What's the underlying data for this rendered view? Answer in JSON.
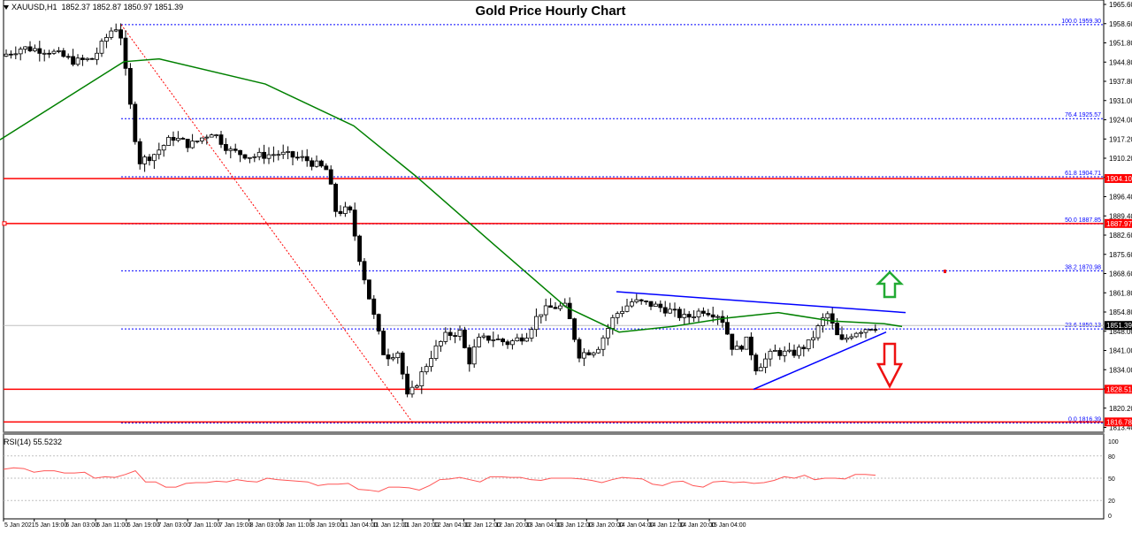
{
  "header": {
    "symbol": "XAUUSD,H1",
    "ohlc": "1852.37 1852.87 1850.97 1851.39",
    "title": "Gold Price Hourly Chart"
  },
  "rsi": {
    "label": "RSI(14) 55.5232",
    "levels": [
      100,
      80,
      50,
      20,
      0
    ]
  },
  "colors": {
    "bull_candle": "#ffffff",
    "bear_candle": "#000000",
    "ma": "#008000",
    "fib": "#0000ff",
    "support_resistance": "#ff0000",
    "rsi_line": "#ff5555",
    "trendline": "#0000ff",
    "up_arrow": "#22aa33",
    "down_arrow": "#ee1111",
    "current_price_bg": "#000000"
  },
  "chart_data": {
    "type": "candlestick",
    "title": "Gold Price Hourly Chart",
    "symbol": "XAUUSD",
    "timeframe": "H1",
    "ylim": [
      1813.4,
      1965.6
    ],
    "y_ticks": [
      "1965.60",
      "1958.60",
      "1951.80",
      "1944.80",
      "1937.80",
      "1931.00",
      "1924.00",
      "1917.20",
      "1910.20",
      "1903.20",
      "1896.40",
      "1889.40",
      "1882.60",
      "1875.60",
      "1868.60",
      "1861.80",
      "1854.80",
      "1848.00",
      "1841.00",
      "1834.00",
      "1827.20",
      "1820.20",
      "1813.40"
    ],
    "x_ticks": [
      "5 Jan 2021",
      "5 Jan 19:00",
      "6 Jan 03:00",
      "6 Jan 11:00",
      "6 Jan 19:00",
      "7 Jan 03:00",
      "7 Jan 11:00",
      "7 Jan 19:00",
      "8 Jan 03:00",
      "8 Jan 11:00",
      "8 Jan 19:00",
      "11 Jan 04:00",
      "11 Jan 12:00",
      "11 Jan 20:00",
      "12 Jan 04:00",
      "12 Jan 12:00",
      "12 Jan 20:00",
      "13 Jan 04:00",
      "13 Jan 12:00",
      "13 Jan 20:00",
      "14 Jan 04:00",
      "14 Jan 12:00",
      "14 Jan 20:00",
      "15 Jan 04:00"
    ],
    "current_price": "1851.39",
    "fibonacci": [
      {
        "level": "100.0",
        "price": "1959.30"
      },
      {
        "level": "76.4",
        "price": "1925.57"
      },
      {
        "level": "61.8",
        "price": "1904.71"
      },
      {
        "level": "50.0",
        "price": "1887.85"
      },
      {
        "level": "38.2",
        "price": "1870.98"
      },
      {
        "level": "23.6",
        "price": "1850.13"
      },
      {
        "level": "0.0",
        "price": "1816.39"
      }
    ],
    "horizontal_lines": [
      "1904.10",
      "1887.97",
      "1828.51",
      "1816.78"
    ],
    "moving_average": {
      "name": "SMA",
      "approx_path": [
        [
          0,
          1918
        ],
        [
          140,
          1946
        ],
        [
          180,
          1947
        ],
        [
          300,
          1938
        ],
        [
          400,
          1923
        ],
        [
          470,
          1905
        ],
        [
          560,
          1880
        ],
        [
          640,
          1858
        ],
        [
          700,
          1849
        ],
        [
          760,
          1851
        ],
        [
          820,
          1854
        ],
        [
          880,
          1856
        ],
        [
          940,
          1853
        ],
        [
          1000,
          1852
        ],
        [
          1020,
          1851
        ]
      ]
    },
    "trendlines": [
      {
        "name": "descending-resistance",
        "from": [
          697,
          1863.5
        ],
        "to": [
          1024,
          1856
        ]
      },
      {
        "name": "ascending-support",
        "from": [
          852,
          1828.5
        ],
        "to": [
          1002,
          1849
        ]
      }
    ],
    "rsi_values_approx": [
      62,
      64,
      63,
      58,
      60,
      60,
      57,
      57,
      58,
      50,
      52,
      51,
      55,
      60,
      45,
      45,
      38,
      38,
      43,
      44,
      44,
      46,
      45,
      48,
      46,
      45,
      50,
      48,
      47,
      46,
      45,
      40,
      42,
      42,
      43,
      35,
      34,
      32,
      38,
      38,
      37,
      34,
      40,
      48,
      49,
      51,
      48,
      45,
      52,
      52,
      51,
      51,
      48,
      47,
      50,
      50,
      50,
      49,
      47,
      44,
      48,
      51,
      50,
      49,
      42,
      40,
      45,
      46,
      40,
      38,
      45,
      46,
      44,
      45,
      43,
      44,
      47,
      52,
      50,
      54,
      48,
      50,
      50,
      49,
      55,
      55,
      54
    ],
    "annotations": [
      "green up arrow",
      "red down arrow",
      "red dashed fib diagonal"
    ]
  }
}
